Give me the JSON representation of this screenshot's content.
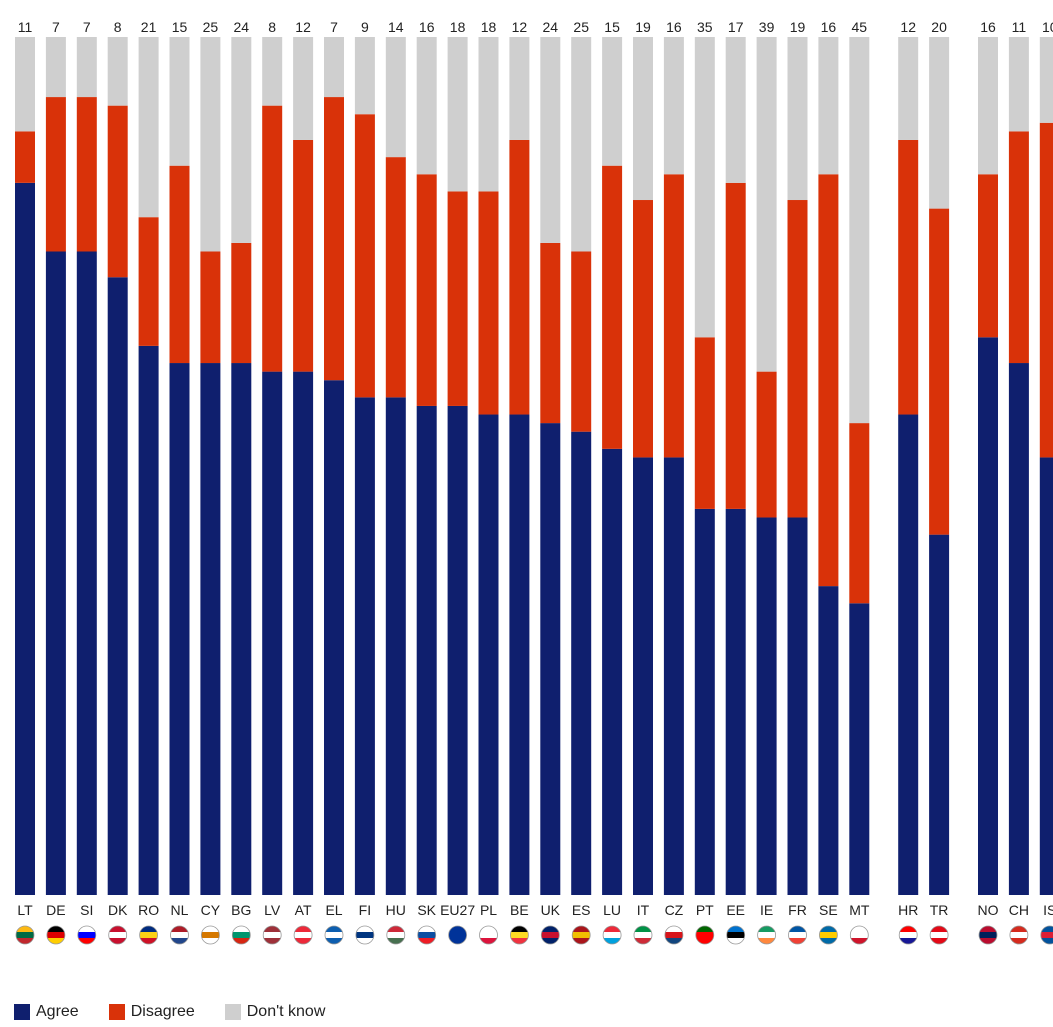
{
  "chart_data": {
    "type": "bar",
    "stacked": true,
    "orientation": "vertical",
    "normalized_to": 100,
    "categories": [
      "LT",
      "DE",
      "SI",
      "DK",
      "RO",
      "NL",
      "CY",
      "BG",
      "LV",
      "AT",
      "EL",
      "FI",
      "HU",
      "SK",
      "EU27",
      "PL",
      "BE",
      "UK",
      "ES",
      "LU",
      "IT",
      "CZ",
      "PT",
      "EE",
      "IE",
      "FR",
      "SE",
      "MT",
      "HR",
      "TR",
      "NO",
      "CH",
      "IS"
    ],
    "groups": [
      [
        "LT",
        "DE",
        "SI",
        "DK",
        "RO",
        "NL",
        "CY",
        "BG",
        "LV",
        "AT",
        "EL",
        "FI",
        "HU",
        "SK",
        "EU27",
        "PL",
        "BE",
        "UK",
        "ES",
        "LU",
        "IT",
        "CZ",
        "PT",
        "EE",
        "IE",
        "FR",
        "SE",
        "MT"
      ],
      [
        "HR",
        "TR"
      ],
      [
        "NO",
        "CH",
        "IS"
      ]
    ],
    "series": [
      {
        "name": "Agree",
        "color": "#0f1f6e",
        "values": [
          83,
          75,
          75,
          72,
          64,
          62,
          62,
          62,
          61,
          61,
          60,
          58,
          58,
          57,
          57,
          56,
          56,
          55,
          54,
          52,
          51,
          51,
          45,
          45,
          44,
          44,
          36,
          34,
          56,
          42,
          65,
          62,
          51
        ]
      },
      {
        "name": "Disagree",
        "color": "#d93209",
        "values": [
          6,
          18,
          18,
          20,
          15,
          23,
          13,
          14,
          31,
          27,
          33,
          33,
          28,
          27,
          25,
          26,
          32,
          21,
          21,
          33,
          30,
          33,
          20,
          38,
          17,
          37,
          48,
          21,
          32,
          38,
          19,
          27,
          39
        ]
      },
      {
        "name": "Don't know",
        "color": "#cfcfcf",
        "values": [
          11,
          7,
          7,
          8,
          21,
          15,
          25,
          24,
          8,
          12,
          7,
          9,
          14,
          16,
          18,
          18,
          12,
          24,
          25,
          15,
          19,
          16,
          35,
          17,
          39,
          19,
          16,
          45,
          12,
          20,
          16,
          11,
          10
        ]
      }
    ],
    "flags": {
      "LT": [
        "#fdb913",
        "#006a44",
        "#c1272d"
      ],
      "DE": [
        "#000000",
        "#dd0000",
        "#ffce00"
      ],
      "SI": [
        "#ffffff",
        "#0000ff",
        "#ff0000"
      ],
      "DK": [
        "#c8102e",
        "#ffffff",
        "#c8102e"
      ],
      "RO": [
        "#002b7f",
        "#fcd116",
        "#ce1126"
      ],
      "NL": [
        "#ae1c28",
        "#ffffff",
        "#21468b"
      ],
      "CY": [
        "#ffffff",
        "#d57800",
        "#ffffff"
      ],
      "BG": [
        "#ffffff",
        "#00966e",
        "#d62612"
      ],
      "LV": [
        "#9e3039",
        "#ffffff",
        "#9e3039"
      ],
      "AT": [
        "#ed2939",
        "#ffffff",
        "#ed2939"
      ],
      "EL": [
        "#0d5eaf",
        "#ffffff",
        "#0d5eaf"
      ],
      "FI": [
        "#ffffff",
        "#003580",
        "#ffffff"
      ],
      "HU": [
        "#ce2939",
        "#ffffff",
        "#477050"
      ],
      "SK": [
        "#ffffff",
        "#0b4ea2",
        "#ee1c25"
      ],
      "EU27": [
        "#003399",
        "#003399",
        "#003399"
      ],
      "PL": [
        "#ffffff",
        "#ffffff",
        "#dc143c"
      ],
      "BE": [
        "#000000",
        "#fdda24",
        "#ef3340"
      ],
      "UK": [
        "#012169",
        "#c8102e",
        "#012169"
      ],
      "ES": [
        "#aa151b",
        "#f1bf00",
        "#aa151b"
      ],
      "LU": [
        "#ed2939",
        "#ffffff",
        "#00a1de"
      ],
      "IT": [
        "#009246",
        "#ffffff",
        "#ce2b37"
      ],
      "CZ": [
        "#ffffff",
        "#d7141a",
        "#11457e"
      ],
      "PT": [
        "#006600",
        "#ff0000",
        "#ff0000"
      ],
      "EE": [
        "#0072ce",
        "#000000",
        "#ffffff"
      ],
      "IE": [
        "#169b62",
        "#ffffff",
        "#ff883e"
      ],
      "FR": [
        "#0055a4",
        "#ffffff",
        "#ef4135"
      ],
      "SE": [
        "#006aa7",
        "#fecc00",
        "#006aa7"
      ],
      "MT": [
        "#ffffff",
        "#ffffff",
        "#cf142b"
      ],
      "HR": [
        "#ff0000",
        "#ffffff",
        "#171796"
      ],
      "TR": [
        "#e30a17",
        "#ffffff",
        "#e30a17"
      ],
      "NO": [
        "#ba0c2f",
        "#00205b",
        "#ba0c2f"
      ],
      "CH": [
        "#d52b1e",
        "#ffffff",
        "#d52b1e"
      ],
      "IS": [
        "#02529c",
        "#dc1e35",
        "#02529c"
      ]
    },
    "title": "",
    "xlabel": "",
    "ylabel": "",
    "ylim": [
      0,
      100
    ],
    "grid": false,
    "legend": "bottom-left"
  },
  "legend": {
    "items": [
      {
        "label": "Agree",
        "color": "#0f1f6e"
      },
      {
        "label": "Disagree",
        "color": "#d93209"
      },
      {
        "label": "Don't know",
        "color": "#cfcfcf"
      }
    ]
  }
}
